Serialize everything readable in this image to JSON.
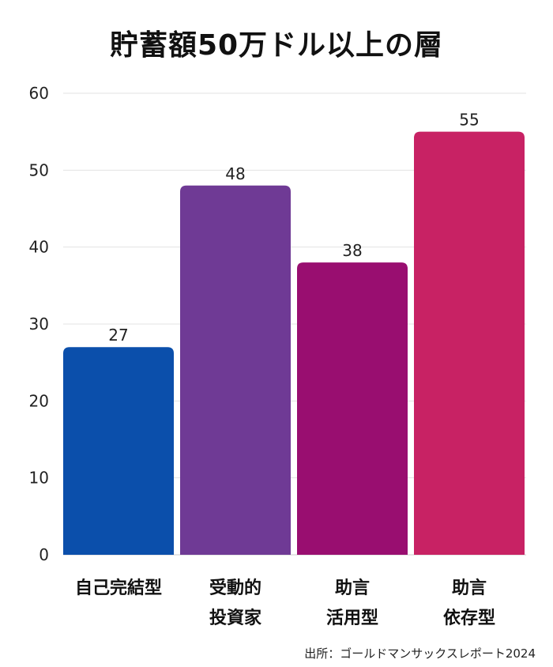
{
  "chart_data": {
    "type": "bar",
    "title": "貯蓄額50万ドル以上の層",
    "categories": [
      [
        "自己完結型"
      ],
      [
        "受動的",
        "投資家"
      ],
      [
        "助言",
        "活用型"
      ],
      [
        "助言",
        "依存型"
      ]
    ],
    "values": [
      27,
      48,
      38,
      55
    ],
    "data_labels": [
      "27",
      "48",
      "38",
      "55"
    ],
    "colors": [
      "#0b4fab",
      "#6f3a95",
      "#990e70",
      "#c82264"
    ],
    "ylim": [
      0,
      60
    ],
    "yticks": [
      0,
      10,
      20,
      30,
      40,
      50,
      60
    ],
    "grid": true,
    "legend": "none"
  },
  "source": "出所：ゴールドマンサックスレポート2024"
}
